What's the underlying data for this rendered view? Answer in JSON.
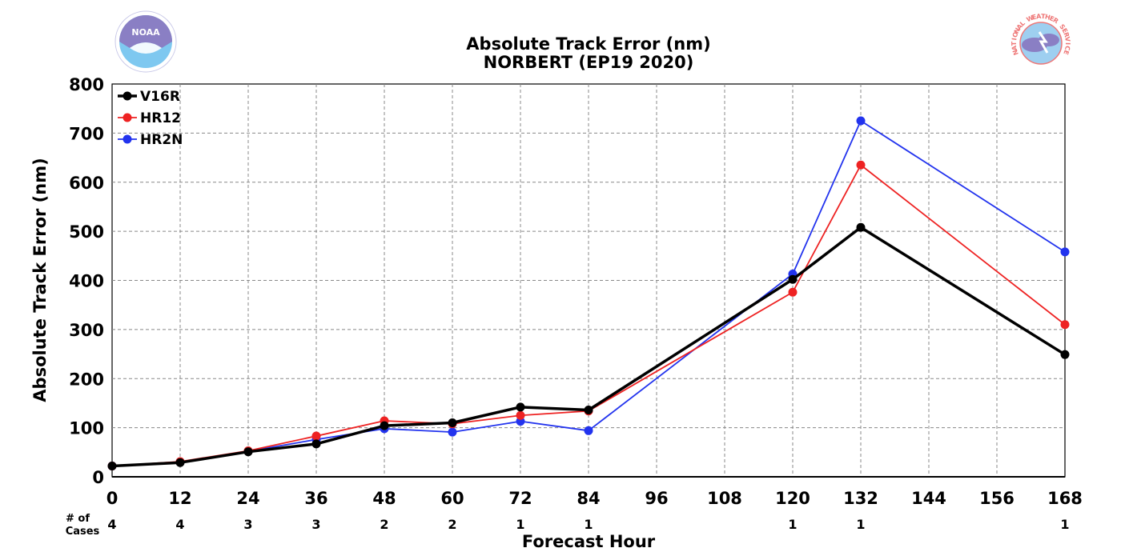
{
  "colors": {
    "V16R": "#000000",
    "HR12": "#ee2222",
    "HR2N": "#2233ee",
    "grid": "#888888",
    "noaa_dark": "#8a7fc4",
    "noaa_light": "#7ec8f0",
    "nws_red": "#ee7777",
    "nws_blue": "#9ecff0",
    "nws_purple": "#8a7fc4"
  },
  "logos": {
    "left": {
      "icon": "noaa-logo-icon",
      "text": "NOAA"
    },
    "right": {
      "icon": "nws-logo-icon",
      "text": "NATIONAL WEATHER SERVICE"
    }
  },
  "cases": {
    "caption_line1": "# of",
    "caption_line2": "Cases",
    "values": [
      {
        "x": 0,
        "label": "4"
      },
      {
        "x": 12,
        "label": "4"
      },
      {
        "x": 24,
        "label": "3"
      },
      {
        "x": 36,
        "label": "3"
      },
      {
        "x": 48,
        "label": "2"
      },
      {
        "x": 60,
        "label": "2"
      },
      {
        "x": 72,
        "label": "1"
      },
      {
        "x": 84,
        "label": "1"
      },
      {
        "x": 120,
        "label": "1"
      },
      {
        "x": 132,
        "label": "1"
      },
      {
        "x": 168,
        "label": "1"
      }
    ]
  },
  "chart_data": {
    "type": "line",
    "title": "Absolute Track Error (nm)",
    "subtitle": "NORBERT (EP19 2020)",
    "xlabel": "Forecast Hour",
    "ylabel": "Absolute Track Error (nm)",
    "xlim": [
      0,
      168
    ],
    "ylim": [
      0,
      800
    ],
    "xticks": [
      0,
      12,
      24,
      36,
      48,
      60,
      72,
      84,
      96,
      108,
      120,
      132,
      144,
      156,
      168
    ],
    "yticks": [
      0,
      100,
      200,
      300,
      400,
      500,
      600,
      700,
      800
    ],
    "grid": true,
    "legend_position": "top-left",
    "series": [
      {
        "name": "V16R",
        "color": "#000000",
        "x": [
          0,
          12,
          24,
          36,
          48,
          60,
          72,
          84,
          120,
          132,
          168
        ],
        "y": [
          22,
          29,
          51,
          67,
          104,
          110,
          142,
          136,
          402,
          508,
          249
        ]
      },
      {
        "name": "HR12",
        "color": "#ee2222",
        "x": [
          0,
          12,
          24,
          36,
          48,
          60,
          72,
          84,
          120,
          132,
          168
        ],
        "y": [
          22,
          31,
          53,
          83,
          114,
          108,
          125,
          134,
          376,
          635,
          310
        ]
      },
      {
        "name": "HR2N",
        "color": "#2233ee",
        "x": [
          0,
          12,
          24,
          36,
          48,
          60,
          72,
          84,
          120,
          132,
          168
        ],
        "y": [
          22,
          30,
          52,
          76,
          98,
          91,
          113,
          94,
          413,
          725,
          458
        ]
      }
    ]
  }
}
